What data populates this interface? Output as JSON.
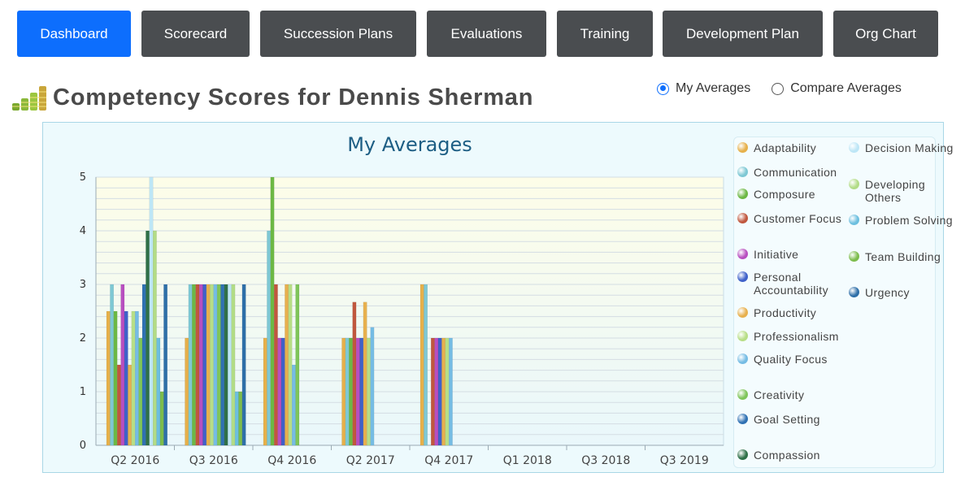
{
  "nav": {
    "tabs": [
      {
        "label": "Dashboard",
        "active": true
      },
      {
        "label": "Scorecard",
        "active": false
      },
      {
        "label": "Succession Plans",
        "active": false
      },
      {
        "label": "Evaluations",
        "active": false
      },
      {
        "label": "Training",
        "active": false
      },
      {
        "label": "Development Plan",
        "active": false
      },
      {
        "label": "Org Chart",
        "active": false
      }
    ]
  },
  "header": {
    "title": "Competency Scores for Dennis Sherman",
    "icon": "bar-chart-coins-icon"
  },
  "view_toggle": {
    "options": [
      {
        "label": "My Averages",
        "checked": true
      },
      {
        "label": "Compare Averages",
        "checked": false
      }
    ]
  },
  "chart_data": {
    "type": "bar",
    "title": "My Averages",
    "xlabel": "",
    "ylabel": "",
    "ylim": [
      0,
      5
    ],
    "yticks": [
      "0",
      "1",
      "2",
      "3",
      "4",
      "5"
    ],
    "grid": true,
    "legend_position": "right",
    "categories": [
      "Q2 2016",
      "Q3 2016",
      "Q4 2016",
      "Q2 2017",
      "Q4 2017",
      "Q1 2018",
      "Q3 2018",
      "Q3 2019"
    ],
    "series": [
      {
        "name": "Adaptability",
        "color": "#e6b04a",
        "values": [
          2.5,
          2,
          2,
          2,
          3,
          null,
          null,
          null
        ]
      },
      {
        "name": "Communication",
        "color": "#7ec8d4",
        "values": [
          3,
          3,
          4,
          2,
          3,
          null,
          null,
          null
        ]
      },
      {
        "name": "Composure",
        "color": "#6cb844",
        "values": [
          2.5,
          3,
          5,
          2,
          null,
          null,
          null,
          null
        ]
      },
      {
        "name": "Customer Focus",
        "color": "#c0573e",
        "values": [
          1.5,
          3,
          3,
          2.67,
          2,
          null,
          null,
          null
        ]
      },
      {
        "name": "Initiative",
        "color": "#b84fc0",
        "values": [
          3,
          3,
          2,
          2,
          2,
          null,
          null,
          null
        ]
      },
      {
        "name": "Personal Accountability",
        "color": "#3f61c9",
        "values": [
          2.5,
          3,
          2,
          2,
          2,
          null,
          null,
          null
        ]
      },
      {
        "name": "Productivity",
        "color": "#e7b04e",
        "values": [
          1.5,
          3,
          3,
          2.67,
          2,
          null,
          null,
          null
        ]
      },
      {
        "name": "Professionalism",
        "color": "#b7de86",
        "values": [
          2.5,
          3,
          3,
          2,
          2,
          null,
          null,
          null
        ]
      },
      {
        "name": "Quality Focus",
        "color": "#75bce4",
        "values": [
          2.5,
          3,
          1.5,
          2.2,
          2,
          null,
          null,
          null
        ]
      },
      {
        "name": "Creativity",
        "color": "#7fc55a",
        "values": [
          2,
          3,
          3,
          null,
          null,
          null,
          null,
          null
        ]
      },
      {
        "name": "Goal Setting",
        "color": "#2f71b3",
        "values": [
          3,
          3,
          null,
          null,
          null,
          null,
          null,
          null
        ]
      },
      {
        "name": "Compassion",
        "color": "#2f7048",
        "values": [
          4,
          3,
          null,
          null,
          null,
          null,
          null,
          null
        ]
      },
      {
        "name": "Decision Making",
        "color": "#bde6f6",
        "values": [
          5,
          3,
          null,
          null,
          null,
          null,
          null,
          null
        ]
      },
      {
        "name": "Developing Others",
        "color": "#b2dc86",
        "values": [
          4,
          3,
          null,
          null,
          null,
          null,
          null,
          null
        ]
      },
      {
        "name": "Problem Solving",
        "color": "#6cbfdf",
        "values": [
          2,
          1,
          null,
          null,
          null,
          null,
          null,
          null
        ]
      },
      {
        "name": "Team Building",
        "color": "#7cbc4c",
        "values": [
          1,
          1,
          null,
          null,
          null,
          null,
          null,
          null
        ]
      },
      {
        "name": "Urgency",
        "color": "#2e6fa8",
        "values": [
          3,
          3,
          null,
          null,
          null,
          null,
          null,
          null
        ]
      }
    ]
  }
}
